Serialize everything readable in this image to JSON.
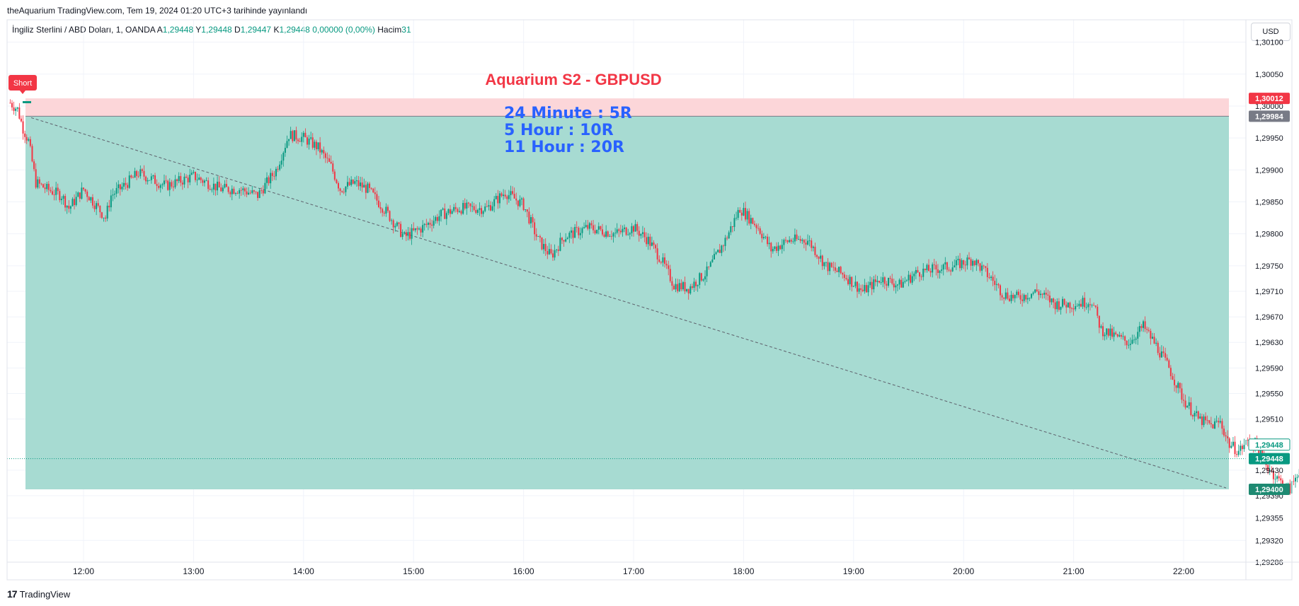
{
  "header": {
    "published": "theAquarium TradingView.com, Tem 19, 2024 01:20 UTC+3 tarihinde yayınlandı"
  },
  "legend": {
    "symbol": "İngiliz Sterlini / ABD Doları, 1, OANDA",
    "open_label": "A",
    "open": "1,29448",
    "high_label": "Y",
    "high": "1,29448",
    "low_label": "D",
    "low": "1,29447",
    "close_label": "K",
    "close": "1,29448",
    "change": "0,00000 (0,00%)",
    "volume_label": "Hacim",
    "volume": "31"
  },
  "currency_button": "USD",
  "footer": {
    "logo": "17",
    "brand": "TradingView"
  },
  "colors": {
    "up": "#089981",
    "down": "#f23645",
    "target_zone": "#a7dbd2",
    "stop_zone": "#fcd6d9",
    "title": "#f23645",
    "annotation": "#2962ff"
  },
  "chart_data": {
    "type": "candlestick",
    "title": "Aquarium S2 - GBPUSD",
    "annotations": [
      "24 Minute : 5R",
      "5 Hour : 10R",
      "11 Hour : 20R"
    ],
    "position": {
      "side": "Short",
      "entry": 1.29984,
      "stop": 1.30012,
      "target": 1.294
    },
    "current_price": 1.29448,
    "price_labels": {
      "stop": "1,30012",
      "entry": "1,29984",
      "current": "1,29448",
      "current_box": "1,29448",
      "target": "1,29400"
    },
    "y_ticks": [
      "1,30100",
      "1,30050",
      "1,30000",
      "1,29950",
      "1,29900",
      "1,29850",
      "1,29800",
      "1,29750",
      "1,29710",
      "1,29670",
      "1,29630",
      "1,29590",
      "1,29550",
      "1,29510",
      "1,29430",
      "1,29390",
      "1,29355",
      "1,29320",
      "1,29286"
    ],
    "y_tick_values": [
      1.301,
      1.3005,
      1.3,
      1.2995,
      1.299,
      1.2985,
      1.298,
      1.2975,
      1.2971,
      1.2967,
      1.2963,
      1.2959,
      1.2955,
      1.2951,
      1.2943,
      1.2939,
      1.29355,
      1.2932,
      1.29286
    ],
    "x_ticks": [
      "12:00",
      "13:00",
      "14:00",
      "15:00",
      "16:00",
      "17:00",
      "18:00",
      "19:00",
      "20:00",
      "21:00",
      "22:00"
    ],
    "x_range": [
      "11:20",
      "22:40"
    ],
    "ylim": [
      1.29286,
      1.30135
    ],
    "price_path": [
      [
        "11:20",
        1.30005
      ],
      [
        "11:24",
        1.29995
      ],
      [
        "11:27",
        1.29965
      ],
      [
        "11:30",
        1.29945
      ],
      [
        "11:34",
        1.2988
      ],
      [
        "11:40",
        1.2987
      ],
      [
        "11:48",
        1.2986
      ],
      [
        "11:52",
        1.2984
      ],
      [
        "12:00",
        1.2987
      ],
      [
        "12:08",
        1.2984
      ],
      [
        "12:12",
        1.29825
      ],
      [
        "12:15",
        1.2986
      ],
      [
        "12:22",
        1.29875
      ],
      [
        "12:30",
        1.29895
      ],
      [
        "12:45",
        1.29875
      ],
      [
        "13:00",
        1.2989
      ],
      [
        "13:15",
        1.2987
      ],
      [
        "13:25",
        1.2987
      ],
      [
        "13:35",
        1.2986
      ],
      [
        "13:45",
        1.299
      ],
      [
        "13:52",
        1.29955
      ],
      [
        "14:00",
        1.2995
      ],
      [
        "14:08",
        1.29935
      ],
      [
        "14:15",
        1.29905
      ],
      [
        "14:20",
        1.2987
      ],
      [
        "14:28",
        1.2988
      ],
      [
        "14:35",
        1.2987
      ],
      [
        "14:45",
        1.29835
      ],
      [
        "14:55",
        1.29795
      ],
      [
        "15:05",
        1.2981
      ],
      [
        "15:15",
        1.2983
      ],
      [
        "15:25",
        1.2984
      ],
      [
        "15:40",
        1.2984
      ],
      [
        "15:50",
        1.29865
      ],
      [
        "16:00",
        1.29845
      ],
      [
        "16:08",
        1.2979
      ],
      [
        "16:15",
        1.29765
      ],
      [
        "16:22",
        1.29795
      ],
      [
        "16:35",
        1.2981
      ],
      [
        "16:50",
        1.298
      ],
      [
        "17:00",
        1.2981
      ],
      [
        "17:08",
        1.2979
      ],
      [
        "17:15",
        1.2976
      ],
      [
        "17:22",
        1.2972
      ],
      [
        "17:30",
        1.29715
      ],
      [
        "17:40",
        1.2974
      ],
      [
        "17:50",
        1.2979
      ],
      [
        "17:58",
        1.2984
      ],
      [
        "18:08",
        1.2981
      ],
      [
        "18:15",
        1.29775
      ],
      [
        "18:25",
        1.2979
      ],
      [
        "18:35",
        1.2979
      ],
      [
        "18:45",
        1.2975
      ],
      [
        "18:55",
        1.29735
      ],
      [
        "19:05",
        1.2971
      ],
      [
        "19:15",
        1.2973
      ],
      [
        "19:25",
        1.2972
      ],
      [
        "19:35",
        1.2974
      ],
      [
        "19:45",
        1.29745
      ],
      [
        "19:55",
        1.2975
      ],
      [
        "20:05",
        1.2976
      ],
      [
        "20:15",
        1.2973
      ],
      [
        "20:22",
        1.29705
      ],
      [
        "20:30",
        1.297
      ],
      [
        "20:40",
        1.2971
      ],
      [
        "20:50",
        1.2969
      ],
      [
        "21:00",
        1.2969
      ],
      [
        "21:10",
        1.29695
      ],
      [
        "21:15",
        1.2965
      ],
      [
        "21:22",
        1.2964
      ],
      [
        "21:30",
        1.2963
      ],
      [
        "21:38",
        1.29655
      ],
      [
        "21:45",
        1.29625
      ],
      [
        "21:52",
        1.2959
      ],
      [
        "22:00",
        1.2954
      ],
      [
        "22:08",
        1.2951
      ],
      [
        "22:15",
        1.295
      ],
      [
        "22:20",
        1.29505
      ],
      [
        "22:25",
        1.2947
      ],
      [
        "22:30",
        1.2946
      ],
      [
        "22:35",
        1.29475
      ],
      [
        "22:40",
        1.2947
      ],
      [
        "22:45",
        1.2944
      ],
      [
        "22:50",
        1.2942
      ],
      [
        "22:55",
        1.29405
      ],
      [
        "22:58",
        1.294
      ],
      [
        "23:02",
        1.29425
      ],
      [
        "23:06",
        1.29445
      ],
      [
        "23:10",
        1.29448
      ]
    ]
  }
}
